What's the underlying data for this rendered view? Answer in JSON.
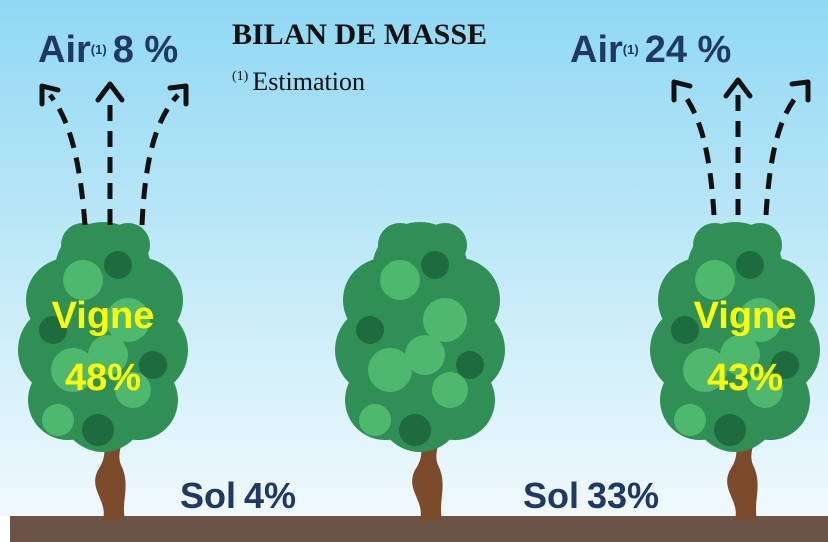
{
  "title": "BILAN DE MASSE",
  "footnote": {
    "marker": "(1)",
    "text": "Estimation"
  },
  "left": {
    "air": {
      "label": "Air",
      "marker": "(1)",
      "value": "8 %"
    },
    "vigne": {
      "label": "Vigne",
      "value": "48%"
    },
    "sol": {
      "label": "Sol",
      "value": "4%"
    }
  },
  "right": {
    "air": {
      "label": "Air",
      "marker": "(1)",
      "value": "24 %"
    },
    "vigne": {
      "label": "Vigne",
      "value": "43%"
    },
    "sol": {
      "label": "Sol",
      "value": "33%"
    }
  }
}
